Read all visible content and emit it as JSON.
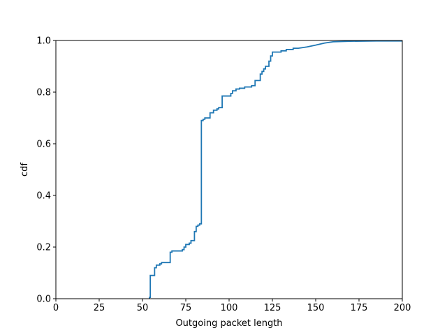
{
  "chart_data": {
    "type": "line",
    "title": "",
    "xlabel": "Outgoing packet length",
    "ylabel": "cdf",
    "xlim": [
      0,
      200
    ],
    "ylim": [
      0,
      1
    ],
    "x_ticks": [
      0,
      25,
      50,
      75,
      100,
      125,
      150,
      175,
      200
    ],
    "y_ticks": [
      0.0,
      0.2,
      0.4,
      0.6,
      0.8,
      1.0
    ],
    "x_tick_labels": [
      "0",
      "25",
      "50",
      "75",
      "100",
      "125",
      "150",
      "175",
      "200"
    ],
    "y_tick_labels": [
      "0.0",
      "0.2",
      "0.4",
      "0.6",
      "0.8",
      "1.0"
    ],
    "grid": false,
    "line_color": "#1f77b4",
    "series": [
      {
        "step": true,
        "points": [
          [
            54,
            0.0
          ],
          [
            54,
            0.005
          ],
          [
            54.5,
            0.005
          ],
          [
            54.5,
            0.09
          ],
          [
            57,
            0.09
          ],
          [
            57,
            0.12
          ],
          [
            58,
            0.12
          ],
          [
            58,
            0.13
          ],
          [
            60,
            0.13
          ],
          [
            60,
            0.135
          ],
          [
            61,
            0.135
          ],
          [
            61,
            0.14
          ],
          [
            66,
            0.14
          ],
          [
            66,
            0.18
          ],
          [
            67,
            0.18
          ],
          [
            67,
            0.185
          ],
          [
            73,
            0.185
          ],
          [
            73,
            0.19
          ],
          [
            74,
            0.19
          ],
          [
            74,
            0.2
          ],
          [
            75,
            0.2
          ],
          [
            75,
            0.21
          ],
          [
            77,
            0.21
          ],
          [
            77,
            0.215
          ],
          [
            78,
            0.215
          ],
          [
            78,
            0.225
          ],
          [
            80,
            0.225
          ],
          [
            80,
            0.26
          ],
          [
            81,
            0.26
          ],
          [
            81,
            0.28
          ],
          [
            82,
            0.28
          ],
          [
            82,
            0.285
          ],
          [
            83,
            0.285
          ],
          [
            83,
            0.29
          ],
          [
            84,
            0.29
          ],
          [
            84,
            0.69
          ],
          [
            85,
            0.69
          ],
          [
            85,
            0.695
          ],
          [
            86,
            0.695
          ],
          [
            86,
            0.7
          ],
          [
            89,
            0.7
          ],
          [
            89,
            0.72
          ],
          [
            91,
            0.72
          ],
          [
            91,
            0.73
          ],
          [
            93,
            0.73
          ],
          [
            93,
            0.735
          ],
          [
            94,
            0.735
          ],
          [
            94,
            0.74
          ],
          [
            96,
            0.74
          ],
          [
            96,
            0.785
          ],
          [
            101,
            0.785
          ],
          [
            101,
            0.795
          ],
          [
            102,
            0.795
          ],
          [
            102,
            0.805
          ],
          [
            104,
            0.805
          ],
          [
            104,
            0.812
          ],
          [
            106,
            0.812
          ],
          [
            106,
            0.815
          ],
          [
            109,
            0.815
          ],
          [
            109,
            0.82
          ],
          [
            113,
            0.82
          ],
          [
            113,
            0.825
          ],
          [
            115,
            0.825
          ],
          [
            115,
            0.845
          ],
          [
            118,
            0.845
          ],
          [
            118,
            0.87
          ],
          [
            119,
            0.87
          ],
          [
            119,
            0.88
          ],
          [
            120,
            0.88
          ],
          [
            120,
            0.89
          ],
          [
            121,
            0.89
          ],
          [
            121,
            0.9
          ],
          [
            123,
            0.9
          ],
          [
            123,
            0.92
          ],
          [
            124,
            0.92
          ],
          [
            124,
            0.94
          ],
          [
            125,
            0.94
          ],
          [
            125,
            0.955
          ],
          [
            130,
            0.955
          ],
          [
            130,
            0.96
          ],
          [
            133,
            0.96
          ],
          [
            133,
            0.965
          ],
          [
            137,
            0.965
          ],
          [
            137,
            0.97
          ],
          [
            140,
            0.97
          ],
          [
            145,
            0.975
          ],
          [
            150,
            0.982
          ],
          [
            155,
            0.99
          ],
          [
            160,
            0.995
          ],
          [
            170,
            0.997
          ],
          [
            185,
            0.998
          ],
          [
            200,
            0.998
          ]
        ]
      }
    ]
  }
}
